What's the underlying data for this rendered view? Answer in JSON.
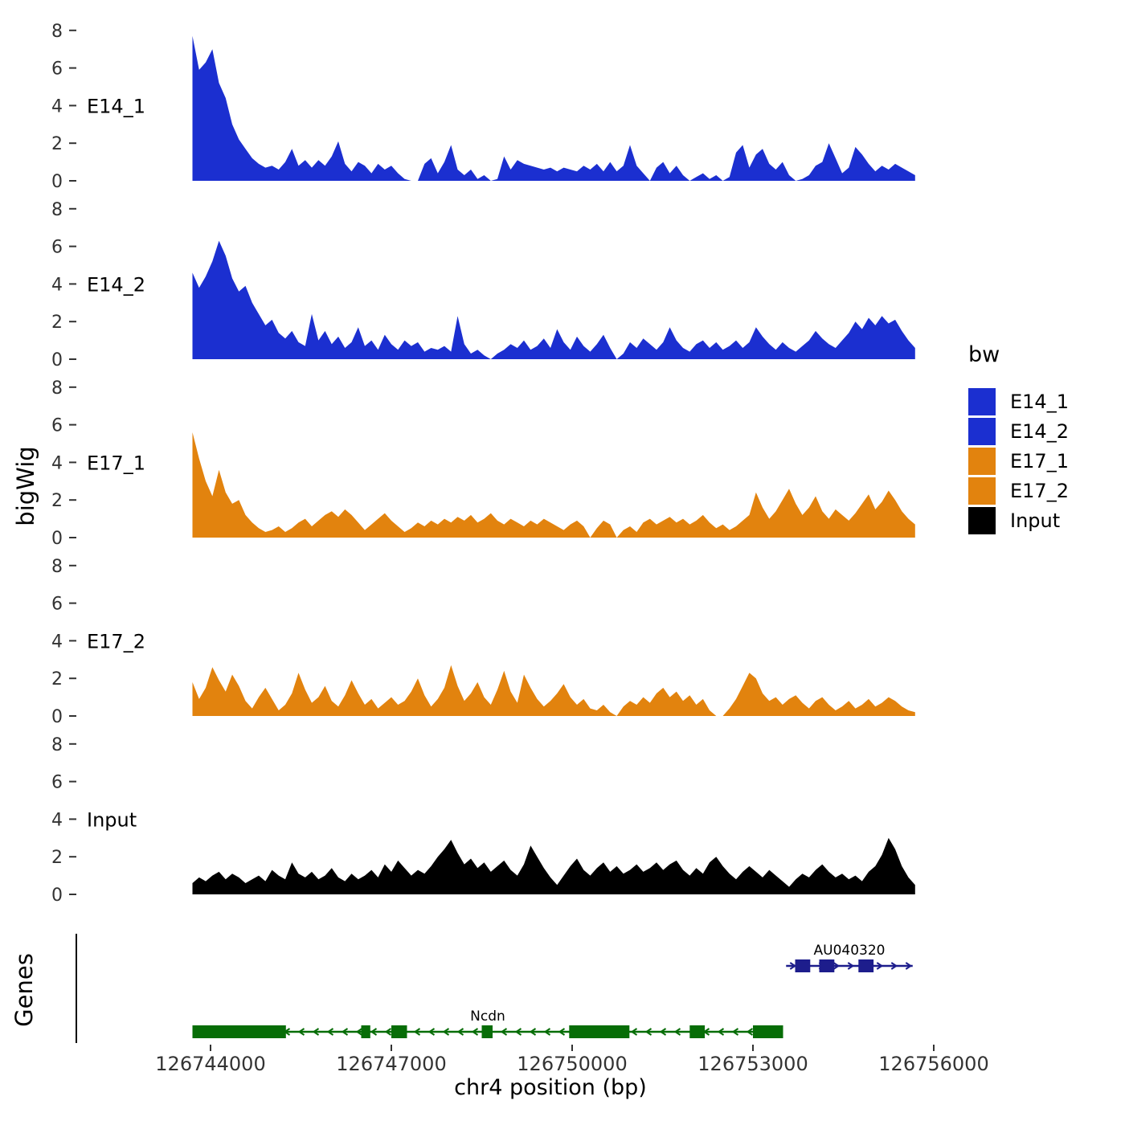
{
  "labels": {
    "y_title": "bigWig",
    "genes_title": "Genes",
    "x_title": "chr4 position (bp)"
  },
  "legend": {
    "title": "bw",
    "items": [
      {
        "label": "E14_1",
        "color": "#1B2FD0"
      },
      {
        "label": "E14_2",
        "color": "#1B2FD0"
      },
      {
        "label": "E17_1",
        "color": "#E2830E"
      },
      {
        "label": "E17_2",
        "color": "#E2830E"
      },
      {
        "label": "Input",
        "color": "#000000"
      }
    ]
  },
  "chart_data": {
    "type": "area",
    "title": "",
    "xlabel": "chr4 position (bp)",
    "ylabel": "bigWig",
    "x_axis": {
      "ticks": [
        126744000,
        126747000,
        126750000,
        126753000,
        126756000
      ],
      "tick_labels": [
        "126744000",
        "126747000",
        "126750000",
        "126753000",
        "126756000"
      ],
      "range": [
        126741800,
        126756400
      ]
    },
    "y_axis": {
      "ticks": [
        0,
        2,
        4,
        6,
        8
      ],
      "ylim": [
        0,
        8
      ]
    },
    "x_start": 126743700,
    "x_step": 110,
    "tracks": [
      {
        "name": "E14_1",
        "color": "#1B2FD0",
        "values": [
          7.7,
          5.9,
          6.3,
          7.0,
          5.2,
          4.4,
          3.0,
          2.2,
          1.7,
          1.2,
          0.9,
          0.7,
          0.8,
          0.6,
          1.0,
          1.7,
          0.8,
          1.1,
          0.7,
          1.1,
          0.8,
          1.3,
          2.1,
          0.9,
          0.5,
          1.0,
          0.8,
          0.4,
          0.9,
          0.6,
          0.8,
          0.4,
          0.1,
          0.0,
          0.0,
          0.9,
          1.2,
          0.4,
          1.0,
          1.9,
          0.6,
          0.3,
          0.6,
          0.1,
          0.3,
          0.0,
          0.1,
          1.3,
          0.6,
          1.1,
          0.9,
          0.8,
          0.7,
          0.6,
          0.7,
          0.5,
          0.7,
          0.6,
          0.5,
          0.8,
          0.6,
          0.9,
          0.5,
          1.0,
          0.5,
          0.8,
          1.9,
          0.8,
          0.4,
          0.0,
          0.7,
          1.0,
          0.4,
          0.8,
          0.3,
          0.0,
          0.2,
          0.4,
          0.1,
          0.3,
          0.0,
          0.2,
          1.5,
          1.9,
          0.7,
          1.4,
          1.7,
          0.9,
          0.6,
          1.0,
          0.3,
          0.0,
          0.1,
          0.3,
          0.8,
          1.0,
          2.0,
          1.2,
          0.4,
          0.7,
          1.8,
          1.4,
          0.9,
          0.5,
          0.8,
          0.6,
          0.9,
          0.7,
          0.5,
          0.3
        ]
      },
      {
        "name": "E14_2",
        "color": "#1B2FD0",
        "values": [
          4.6,
          3.8,
          4.4,
          5.2,
          6.3,
          5.5,
          4.3,
          3.6,
          3.9,
          3.0,
          2.4,
          1.8,
          2.1,
          1.4,
          1.1,
          1.5,
          0.9,
          0.7,
          2.4,
          1.0,
          1.5,
          0.8,
          1.2,
          0.6,
          0.9,
          1.7,
          0.7,
          1.0,
          0.5,
          1.3,
          0.8,
          0.5,
          1.0,
          0.7,
          0.9,
          0.4,
          0.6,
          0.5,
          0.7,
          0.4,
          2.3,
          0.8,
          0.3,
          0.5,
          0.2,
          0.0,
          0.3,
          0.5,
          0.8,
          0.6,
          1.0,
          0.5,
          0.7,
          1.1,
          0.6,
          1.6,
          0.9,
          0.5,
          1.2,
          0.7,
          0.4,
          0.8,
          1.3,
          0.6,
          0.0,
          0.3,
          0.9,
          0.6,
          1.1,
          0.8,
          0.5,
          0.9,
          1.7,
          1.0,
          0.6,
          0.4,
          0.8,
          1.0,
          0.6,
          0.9,
          0.5,
          0.7,
          1.0,
          0.6,
          0.9,
          1.7,
          1.2,
          0.8,
          0.5,
          0.9,
          0.6,
          0.4,
          0.7,
          1.0,
          1.5,
          1.1,
          0.8,
          0.6,
          1.0,
          1.4,
          2.0,
          1.6,
          2.2,
          1.8,
          2.3,
          1.9,
          2.1,
          1.5,
          1.0,
          0.6
        ]
      },
      {
        "name": "E17_1",
        "color": "#E2830E",
        "values": [
          5.6,
          4.2,
          3.0,
          2.2,
          3.6,
          2.4,
          1.8,
          2.0,
          1.2,
          0.8,
          0.5,
          0.3,
          0.4,
          0.6,
          0.3,
          0.5,
          0.8,
          1.0,
          0.6,
          0.9,
          1.2,
          1.4,
          1.1,
          1.5,
          1.2,
          0.8,
          0.4,
          0.7,
          1.0,
          1.3,
          0.9,
          0.6,
          0.3,
          0.5,
          0.8,
          0.6,
          0.9,
          0.7,
          1.0,
          0.8,
          1.1,
          0.9,
          1.2,
          0.8,
          1.0,
          1.3,
          0.9,
          0.7,
          1.0,
          0.8,
          0.6,
          0.9,
          0.7,
          1.0,
          0.8,
          0.6,
          0.4,
          0.7,
          0.9,
          0.6,
          0.0,
          0.5,
          0.9,
          0.7,
          0.0,
          0.4,
          0.6,
          0.3,
          0.8,
          1.0,
          0.7,
          0.9,
          1.1,
          0.8,
          1.0,
          0.7,
          0.9,
          1.2,
          0.8,
          0.5,
          0.7,
          0.4,
          0.6,
          0.9,
          1.2,
          2.4,
          1.6,
          1.0,
          1.4,
          2.0,
          2.6,
          1.8,
          1.2,
          1.6,
          2.2,
          1.4,
          1.0,
          1.5,
          1.2,
          0.9,
          1.3,
          1.8,
          2.3,
          1.5,
          1.9,
          2.5,
          2.0,
          1.4,
          1.0,
          0.7
        ]
      },
      {
        "name": "E17_2",
        "color": "#E2830E",
        "values": [
          1.8,
          0.9,
          1.5,
          2.6,
          1.9,
          1.3,
          2.2,
          1.6,
          0.8,
          0.4,
          1.0,
          1.5,
          0.9,
          0.3,
          0.6,
          1.2,
          2.3,
          1.4,
          0.7,
          1.0,
          1.6,
          0.8,
          0.5,
          1.1,
          1.9,
          1.2,
          0.6,
          0.9,
          0.4,
          0.7,
          1.0,
          0.6,
          0.8,
          1.3,
          2.0,
          1.1,
          0.5,
          0.9,
          1.5,
          2.7,
          1.6,
          0.8,
          1.2,
          1.8,
          1.0,
          0.6,
          1.4,
          2.4,
          1.3,
          0.7,
          2.2,
          1.5,
          0.9,
          0.5,
          0.8,
          1.2,
          1.7,
          1.0,
          0.6,
          0.9,
          0.4,
          0.3,
          0.6,
          0.2,
          0.0,
          0.5,
          0.8,
          0.6,
          1.0,
          0.7,
          1.2,
          1.5,
          1.0,
          1.3,
          0.8,
          1.1,
          0.6,
          0.9,
          0.3,
          0.0,
          0.0,
          0.4,
          0.9,
          1.6,
          2.3,
          2.0,
          1.2,
          0.8,
          1.0,
          0.6,
          0.9,
          1.1,
          0.7,
          0.4,
          0.8,
          1.0,
          0.6,
          0.3,
          0.5,
          0.8,
          0.4,
          0.6,
          0.9,
          0.5,
          0.7,
          1.0,
          0.8,
          0.5,
          0.3,
          0.2
        ]
      },
      {
        "name": "Input",
        "color": "#000000",
        "values": [
          0.6,
          0.9,
          0.7,
          1.0,
          1.2,
          0.8,
          1.1,
          0.9,
          0.6,
          0.8,
          1.0,
          0.7,
          1.3,
          1.0,
          0.8,
          1.7,
          1.1,
          0.9,
          1.2,
          0.8,
          1.0,
          1.4,
          0.9,
          0.7,
          1.1,
          0.8,
          1.0,
          1.3,
          0.9,
          1.6,
          1.2,
          1.8,
          1.4,
          1.0,
          1.3,
          1.1,
          1.5,
          2.0,
          2.4,
          2.9,
          2.2,
          1.6,
          1.9,
          1.4,
          1.7,
          1.2,
          1.5,
          1.8,
          1.3,
          1.0,
          1.6,
          2.6,
          2.0,
          1.4,
          0.9,
          0.5,
          1.0,
          1.5,
          1.9,
          1.3,
          1.0,
          1.4,
          1.7,
          1.2,
          1.5,
          1.1,
          1.3,
          1.6,
          1.2,
          1.4,
          1.7,
          1.3,
          1.6,
          1.8,
          1.3,
          1.0,
          1.4,
          1.1,
          1.7,
          2.0,
          1.5,
          1.1,
          0.8,
          1.2,
          1.5,
          1.2,
          0.9,
          1.3,
          1.0,
          0.7,
          0.4,
          0.8,
          1.1,
          0.9,
          1.3,
          1.6,
          1.2,
          0.9,
          1.1,
          0.8,
          1.0,
          0.7,
          1.2,
          1.5,
          2.1,
          3.0,
          2.4,
          1.5,
          0.9,
          0.5
        ]
      }
    ]
  },
  "genes": {
    "panel_label": "Genes",
    "items": [
      {
        "name": "AU040320",
        "color": "#1D1D8C",
        "strand": "+",
        "start": 126753550,
        "end": 126755650,
        "exons": [
          [
            126753700,
            126753950
          ],
          [
            126754100,
            126754350
          ],
          [
            126754750,
            126755000
          ]
        ],
        "row": 0
      },
      {
        "name": "Ncdn",
        "color": "#076D07",
        "strand": "-",
        "start": 126743700,
        "end": 126753500,
        "exons": [
          [
            126743700,
            126745250
          ],
          [
            126746500,
            126746650
          ],
          [
            126747000,
            126747260
          ],
          [
            126748500,
            126748680
          ],
          [
            126749950,
            126750950
          ],
          [
            126751950,
            126752200
          ],
          [
            126753000,
            126753500
          ]
        ],
        "row": 1
      }
    ]
  }
}
